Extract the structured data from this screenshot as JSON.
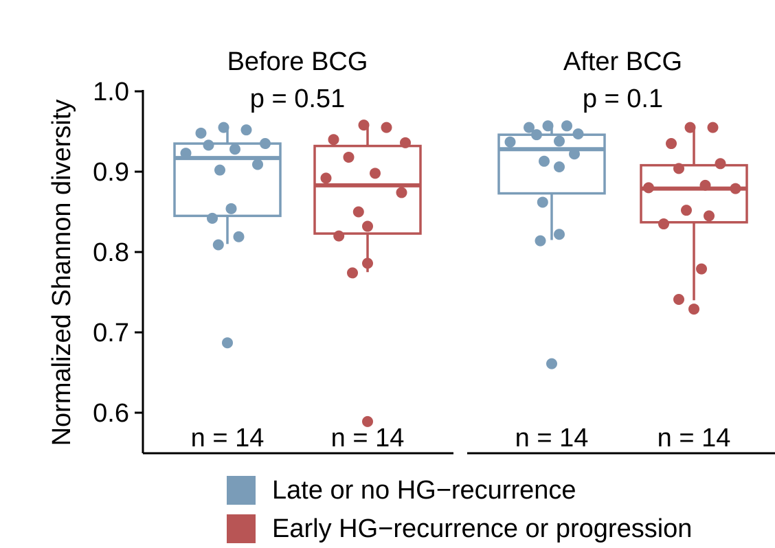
{
  "chart_data": {
    "type": "box",
    "ylabel": "Normalized Shannon diversity",
    "ylim": [
      0.555,
      1.0
    ],
    "yticks": [
      0.6,
      0.7,
      0.8,
      0.9,
      1.0
    ],
    "ytick_labels": [
      "0.6",
      "0.7",
      "0.8",
      "0.9",
      "1.0"
    ],
    "grid": false,
    "legend_placement": "bottom",
    "series": [
      {
        "name": "Late or no HG−recurrence",
        "color": "#7A9CB8"
      },
      {
        "name": "Early HG−recurrence or progression",
        "color": "#B85555"
      }
    ],
    "panels": [
      {
        "title": "Before BCG",
        "p_label": "p = 0.51",
        "groups": [
          {
            "series": 0,
            "n_label": "n = 14",
            "box": {
              "q1": 0.845,
              "median": 0.917,
              "q3": 0.935,
              "whisker_low": 0.81,
              "whisker_high": 0.955
            },
            "points": [
              {
                "x": -0.55,
                "y": 0.923
              },
              {
                "x": -0.35,
                "y": 0.948
              },
              {
                "x": -0.25,
                "y": 0.933
              },
              {
                "x": -0.1,
                "y": 0.902
              },
              {
                "x": -0.05,
                "y": 0.955
              },
              {
                "x": 0.1,
                "y": 0.928
              },
              {
                "x": 0.25,
                "y": 0.952
              },
              {
                "x": 0.4,
                "y": 0.909
              },
              {
                "x": 0.5,
                "y": 0.935
              },
              {
                "x": 0.05,
                "y": 0.854
              },
              {
                "x": -0.2,
                "y": 0.842
              },
              {
                "x": -0.12,
                "y": 0.809
              },
              {
                "x": 0.15,
                "y": 0.819
              },
              {
                "x": 0.0,
                "y": 0.687
              }
            ]
          },
          {
            "series": 1,
            "n_label": "n = 14",
            "box": {
              "q1": 0.823,
              "median": 0.883,
              "q3": 0.932,
              "whisker_low": 0.775,
              "whisker_high": 0.958
            },
            "points": [
              {
                "x": -0.45,
                "y": 0.94
              },
              {
                "x": -0.55,
                "y": 0.892
              },
              {
                "x": -0.25,
                "y": 0.918
              },
              {
                "x": -0.05,
                "y": 0.958
              },
              {
                "x": 0.1,
                "y": 0.898
              },
              {
                "x": 0.25,
                "y": 0.955
              },
              {
                "x": 0.5,
                "y": 0.936
              },
              {
                "x": 0.45,
                "y": 0.874
              },
              {
                "x": -0.12,
                "y": 0.85
              },
              {
                "x": 0.0,
                "y": 0.832
              },
              {
                "x": -0.38,
                "y": 0.82
              },
              {
                "x": 0.0,
                "y": 0.786
              },
              {
                "x": -0.2,
                "y": 0.774
              },
              {
                "x": 0.0,
                "y": 0.589
              }
            ]
          }
        ]
      },
      {
        "title": "After BCG",
        "p_label": "p = 0.1",
        "groups": [
          {
            "series": 0,
            "n_label": "n = 14",
            "box": {
              "q1": 0.873,
              "median": 0.928,
              "q3": 0.946,
              "whisker_low": 0.815,
              "whisker_high": 0.957
            },
            "points": [
              {
                "x": -0.55,
                "y": 0.937
              },
              {
                "x": -0.3,
                "y": 0.955
              },
              {
                "x": -0.2,
                "y": 0.946
              },
              {
                "x": -0.05,
                "y": 0.957
              },
              {
                "x": 0.2,
                "y": 0.957
              },
              {
                "x": 0.35,
                "y": 0.947
              },
              {
                "x": 0.1,
                "y": 0.938
              },
              {
                "x": 0.3,
                "y": 0.922
              },
              {
                "x": -0.1,
                "y": 0.913
              },
              {
                "x": 0.1,
                "y": 0.906
              },
              {
                "x": -0.12,
                "y": 0.862
              },
              {
                "x": 0.1,
                "y": 0.822
              },
              {
                "x": -0.15,
                "y": 0.814
              },
              {
                "x": 0.0,
                "y": 0.661
              }
            ]
          },
          {
            "series": 1,
            "n_label": "n = 14",
            "box": {
              "q1": 0.837,
              "median": 0.879,
              "q3": 0.908,
              "whisker_low": 0.74,
              "whisker_high": 0.955
            },
            "points": [
              {
                "x": -0.05,
                "y": 0.955
              },
              {
                "x": 0.25,
                "y": 0.955
              },
              {
                "x": -0.3,
                "y": 0.935
              },
              {
                "x": 0.35,
                "y": 0.91
              },
              {
                "x": -0.2,
                "y": 0.904
              },
              {
                "x": -0.6,
                "y": 0.88
              },
              {
                "x": 0.15,
                "y": 0.883
              },
              {
                "x": 0.55,
                "y": 0.879
              },
              {
                "x": -0.1,
                "y": 0.852
              },
              {
                "x": 0.2,
                "y": 0.845
              },
              {
                "x": -0.4,
                "y": 0.835
              },
              {
                "x": 0.1,
                "y": 0.779
              },
              {
                "x": -0.2,
                "y": 0.741
              },
              {
                "x": 0.0,
                "y": 0.729
              }
            ]
          }
        ]
      }
    ]
  }
}
